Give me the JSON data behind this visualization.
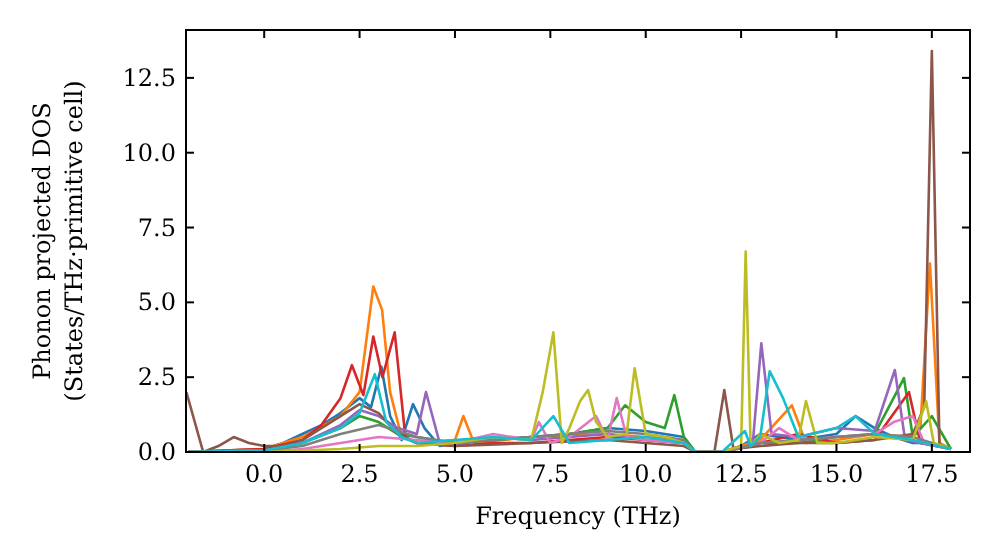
{
  "chart_data": {
    "type": "line",
    "xlabel": "Frequency (THz)",
    "ylabel": "Phonon projected DOS\n(States/THz·primitive cell)",
    "xlim": [
      -2.05,
      18.5
    ],
    "ylim": [
      0,
      14.1
    ],
    "xticks": [
      {
        "value": 0,
        "label": "0.0"
      },
      {
        "value": 2.5,
        "label": "2.5"
      },
      {
        "value": 5,
        "label": "5.0"
      },
      {
        "value": 7.5,
        "label": "7.5"
      },
      {
        "value": 10,
        "label": "10.0"
      },
      {
        "value": 12.5,
        "label": "12.5"
      },
      {
        "value": 15,
        "label": "15.0"
      },
      {
        "value": 17.5,
        "label": "17.5"
      }
    ],
    "yticks": [
      {
        "value": 0,
        "label": "0.0"
      },
      {
        "value": 2.5,
        "label": "2.5"
      },
      {
        "value": 5,
        "label": "5.0"
      },
      {
        "value": 7.5,
        "label": "7.5"
      },
      {
        "value": 10,
        "label": "10.0"
      },
      {
        "value": 12.5,
        "label": "12.5"
      }
    ],
    "grid": false,
    "marker": "none",
    "line_style": "solid",
    "series": [
      {
        "color": "#1f77b4",
        "x": [
          -2,
          -1,
          0,
          0.5,
          1,
          1.5,
          2,
          2.5,
          2.8,
          3.07,
          3.3,
          3.6,
          3.9,
          4.2,
          4.6,
          5,
          6,
          7,
          8,
          9,
          10,
          11,
          11.3,
          12,
          12.5,
          13,
          13.5,
          14,
          15,
          15.5,
          16,
          16.5,
          17,
          17.5,
          18
        ],
        "values": [
          0,
          0.05,
          0.1,
          0.3,
          0.6,
          0.9,
          1.3,
          1.8,
          1.5,
          2.85,
          1.2,
          0.4,
          1.6,
          0.8,
          0.2,
          0.3,
          0.4,
          0.5,
          0.6,
          0.8,
          0.7,
          0.5,
          0,
          0,
          0.2,
          0.6,
          0.5,
          0.4,
          0.6,
          1.2,
          0.8,
          0.5,
          0.3,
          0.3,
          0.1
        ]
      },
      {
        "color": "#ff7f0e",
        "x": [
          -2,
          0,
          1,
          2,
          2.5,
          2.86,
          3.09,
          3.3,
          3.6,
          4,
          5,
          5.22,
          5.5,
          7,
          9,
          10,
          11,
          11.3,
          12,
          13,
          13.83,
          14.2,
          15,
          16,
          17,
          17.2,
          17.45,
          17.7,
          18
        ],
        "values": [
          0,
          0.1,
          0.5,
          1.2,
          2.0,
          5.53,
          4.75,
          2.0,
          0.5,
          0.3,
          0.4,
          1.2,
          0.3,
          0.5,
          0.6,
          0.5,
          0.4,
          0,
          0,
          0.4,
          1.56,
          0.3,
          0.4,
          0.6,
          0.5,
          0.8,
          6.3,
          0.3,
          0.1
        ]
      },
      {
        "color": "#2ca02c",
        "x": [
          -2,
          0,
          1,
          2,
          2.5,
          3,
          3.5,
          4,
          5,
          6,
          7,
          8,
          9,
          9.46,
          10,
          10.5,
          10.75,
          11,
          11.3,
          12,
          13,
          14,
          15,
          16,
          16.77,
          17,
          17.5,
          18
        ],
        "values": [
          0,
          0.05,
          0.3,
          0.8,
          1.2,
          1.0,
          0.6,
          0.5,
          0.3,
          0.4,
          0.5,
          0.6,
          0.8,
          1.56,
          1.0,
          0.8,
          1.9,
          0.5,
          0,
          0,
          0.3,
          0.3,
          0.5,
          0.6,
          2.47,
          0.5,
          1.2,
          0.1
        ]
      },
      {
        "color": "#d62728",
        "x": [
          -2,
          0,
          1,
          1.5,
          2,
          2.3,
          2.6,
          2.86,
          3.1,
          3.42,
          3.7,
          4,
          5,
          6,
          7,
          8,
          9,
          10,
          11,
          11.3,
          12,
          13,
          14,
          15,
          16,
          16.9,
          17.2,
          18
        ],
        "values": [
          0,
          0.1,
          0.4,
          0.9,
          1.8,
          2.9,
          1.9,
          3.86,
          2.5,
          4.0,
          0.5,
          0.3,
          0.2,
          0.3,
          0.3,
          0.4,
          0.5,
          0.4,
          0.3,
          0,
          0,
          0.3,
          0.6,
          0.3,
          0.4,
          2.0,
          0.3,
          0.1
        ]
      },
      {
        "color": "#9467bd",
        "x": [
          -2,
          0,
          1,
          2,
          2.5,
          3,
          3.5,
          4,
          4.24,
          4.6,
          5,
          6,
          7,
          8,
          9,
          10,
          11,
          11.3,
          12,
          12.8,
          13.03,
          13.3,
          14,
          15,
          16,
          16.53,
          16.8,
          18
        ],
        "values": [
          0,
          0.05,
          0.3,
          0.9,
          1.4,
          1.2,
          0.8,
          0.6,
          2.0,
          0.3,
          0.2,
          0.5,
          0.4,
          0.5,
          0.6,
          0.4,
          0.3,
          0,
          0,
          0.2,
          3.63,
          0.6,
          0.5,
          0.8,
          0.7,
          2.74,
          0.4,
          0.1
        ]
      },
      {
        "color": "#8c564b",
        "x": [
          -2.04,
          -1.6,
          -1.2,
          -0.8,
          -0.4,
          0,
          0.5,
          1,
          1.5,
          2,
          2.5,
          3,
          3.5,
          4,
          5,
          7,
          9,
          10,
          11,
          11.3,
          11.8,
          12.06,
          12.3,
          13,
          14,
          15,
          16,
          17,
          17.3,
          17.5,
          17.7,
          18
        ],
        "values": [
          2.0,
          0,
          0.2,
          0.5,
          0.3,
          0.2,
          0.2,
          0.4,
          0.8,
          1.2,
          1.6,
          1.3,
          0.6,
          0.3,
          0.2,
          0.3,
          0.4,
          0.3,
          0.2,
          0,
          0,
          2.07,
          0.1,
          0.2,
          0.3,
          0.3,
          0.4,
          0.6,
          1.5,
          13.4,
          0.2,
          0.1
        ]
      },
      {
        "color": "#e377c2",
        "x": [
          -2,
          0,
          1,
          2,
          3,
          4,
          5,
          6,
          7,
          7.2,
          7.5,
          8,
          8.7,
          9,
          9.24,
          9.5,
          10,
          11,
          11.3,
          12,
          13,
          13.5,
          14,
          15,
          16,
          16.5,
          17,
          17.3,
          18
        ],
        "values": [
          0,
          0,
          0.1,
          0.3,
          0.5,
          0.4,
          0.3,
          0.6,
          0.4,
          1.0,
          0.3,
          0.5,
          1.2,
          0.4,
          1.8,
          0.5,
          0.4,
          0.3,
          0,
          0,
          0.3,
          0.8,
          0.4,
          0.5,
          0.6,
          1.0,
          1.2,
          0.3,
          0.1
        ]
      },
      {
        "color": "#7f7f7f",
        "x": [
          -2,
          0,
          1,
          2,
          3,
          4,
          5,
          6,
          7,
          8,
          9,
          10,
          11,
          11.3,
          12,
          13,
          14,
          15,
          16,
          17,
          18
        ],
        "values": [
          0,
          0.05,
          0.2,
          0.6,
          0.9,
          0.5,
          0.3,
          0.4,
          0.5,
          0.6,
          0.7,
          0.6,
          0.4,
          0,
          0,
          0.3,
          0.4,
          0.5,
          0.6,
          0.5,
          0.1
        ]
      },
      {
        "color": "#bcbd22",
        "x": [
          -2,
          0,
          1,
          2,
          3,
          4,
          5,
          6,
          7,
          7.3,
          7.58,
          7.8,
          8,
          8.28,
          8.49,
          8.7,
          9,
          9.5,
          9.71,
          10,
          10.5,
          11,
          11.3,
          12,
          12.5,
          12.62,
          12.75,
          13,
          13.5,
          14,
          14.2,
          14.5,
          15,
          16,
          17,
          17.35,
          17.55,
          18
        ],
        "values": [
          0,
          0,
          0.05,
          0.1,
          0.2,
          0.2,
          0.3,
          0.5,
          0.4,
          2.0,
          4.0,
          0.3,
          0.8,
          1.7,
          2.07,
          1.0,
          0.5,
          0.6,
          2.8,
          0.6,
          0.5,
          0.3,
          0,
          0,
          0.2,
          6.7,
          0.2,
          0.6,
          0.3,
          0.4,
          1.7,
          0.3,
          0.3,
          0.5,
          0.4,
          1.7,
          0.3,
          0.1
        ]
      },
      {
        "color": "#17becf",
        "x": [
          -2,
          0,
          1,
          2,
          2.5,
          2.9,
          3.2,
          3.6,
          4,
          5,
          6,
          7,
          7.58,
          8,
          9,
          10,
          11,
          11.3,
          12,
          12.6,
          12.75,
          13,
          13.25,
          13.6,
          14,
          15,
          15.5,
          16,
          17,
          18
        ],
        "values": [
          0,
          0.05,
          0.3,
          0.8,
          1.3,
          2.6,
          1.0,
          0.5,
          0.3,
          0.4,
          0.5,
          0.4,
          1.2,
          0.3,
          0.4,
          0.5,
          0.3,
          0,
          0,
          0.7,
          0.2,
          0.5,
          2.7,
          1.8,
          0.5,
          0.8,
          1.2,
          0.6,
          0.4,
          0.1
        ]
      }
    ]
  }
}
